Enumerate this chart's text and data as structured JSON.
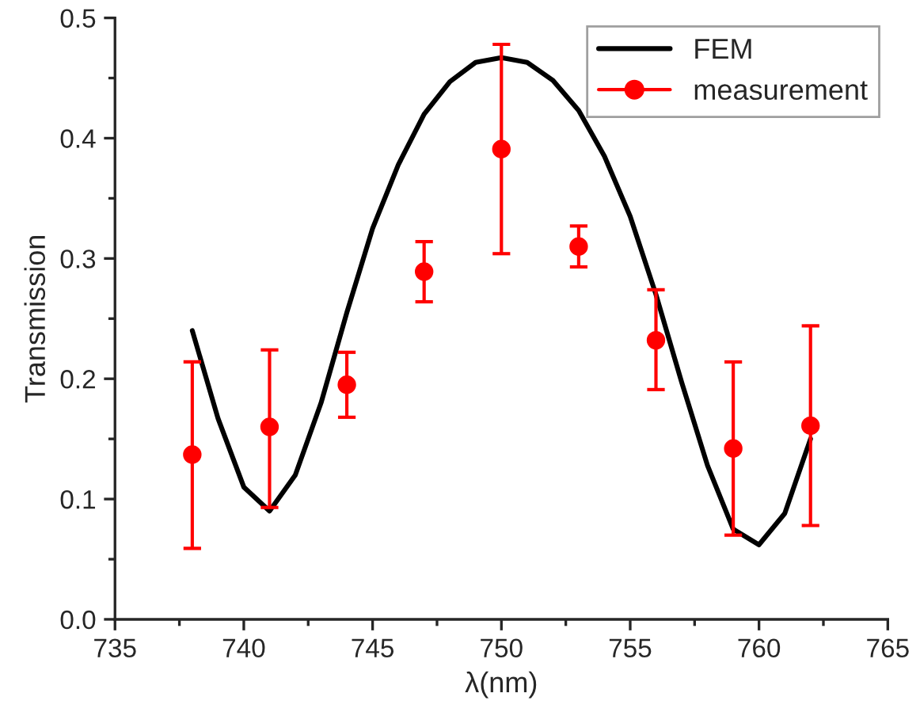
{
  "chart_data": {
    "type": "line",
    "xlabel": "λ(nm)",
    "ylabel": "Transmission",
    "xlim": [
      735,
      765
    ],
    "xticks": [
      735,
      740,
      745,
      750,
      755,
      760,
      765
    ],
    "ylim": [
      0,
      0.5
    ],
    "yticks": [
      {
        "value": 0,
        "label": "0.0"
      },
      0.1,
      0.2,
      0.3,
      0.4,
      0.5
    ],
    "legend": "top right",
    "grid": false,
    "series": [
      {
        "name": "FEM",
        "color": "#000000",
        "marker": "none",
        "x": [
          738,
          739,
          740,
          741,
          742,
          743,
          744,
          745,
          746,
          747,
          748,
          749,
          750,
          751,
          752,
          753,
          754,
          755,
          756,
          757,
          758,
          759,
          760,
          761,
          762
        ],
        "values": [
          0.24,
          0.167,
          0.11,
          0.09,
          0.12,
          0.18,
          0.255,
          0.325,
          0.378,
          0.42,
          0.447,
          0.463,
          0.467,
          0.463,
          0.448,
          0.423,
          0.385,
          0.335,
          0.27,
          0.197,
          0.128,
          0.075,
          0.062,
          0.088,
          0.15
        ]
      },
      {
        "name": "measurement",
        "type": "scatter",
        "color": "#ff0000",
        "marker": "circle",
        "x": [
          738,
          741,
          744,
          747,
          750,
          753,
          756,
          759,
          762
        ],
        "values": [
          0.137,
          0.16,
          0.195,
          0.289,
          0.391,
          0.31,
          0.232,
          0.142,
          0.161
        ],
        "errors": [
          [
            0.059,
            0.214
          ],
          [
            0.093,
            0.224
          ],
          [
            0.168,
            0.222
          ],
          [
            0.264,
            0.314
          ],
          [
            0.304,
            0.478
          ],
          [
            0.293,
            0.327
          ],
          [
            0.191,
            0.274
          ],
          [
            0.07,
            0.214
          ],
          [
            0.078,
            0.244
          ]
        ]
      }
    ]
  }
}
